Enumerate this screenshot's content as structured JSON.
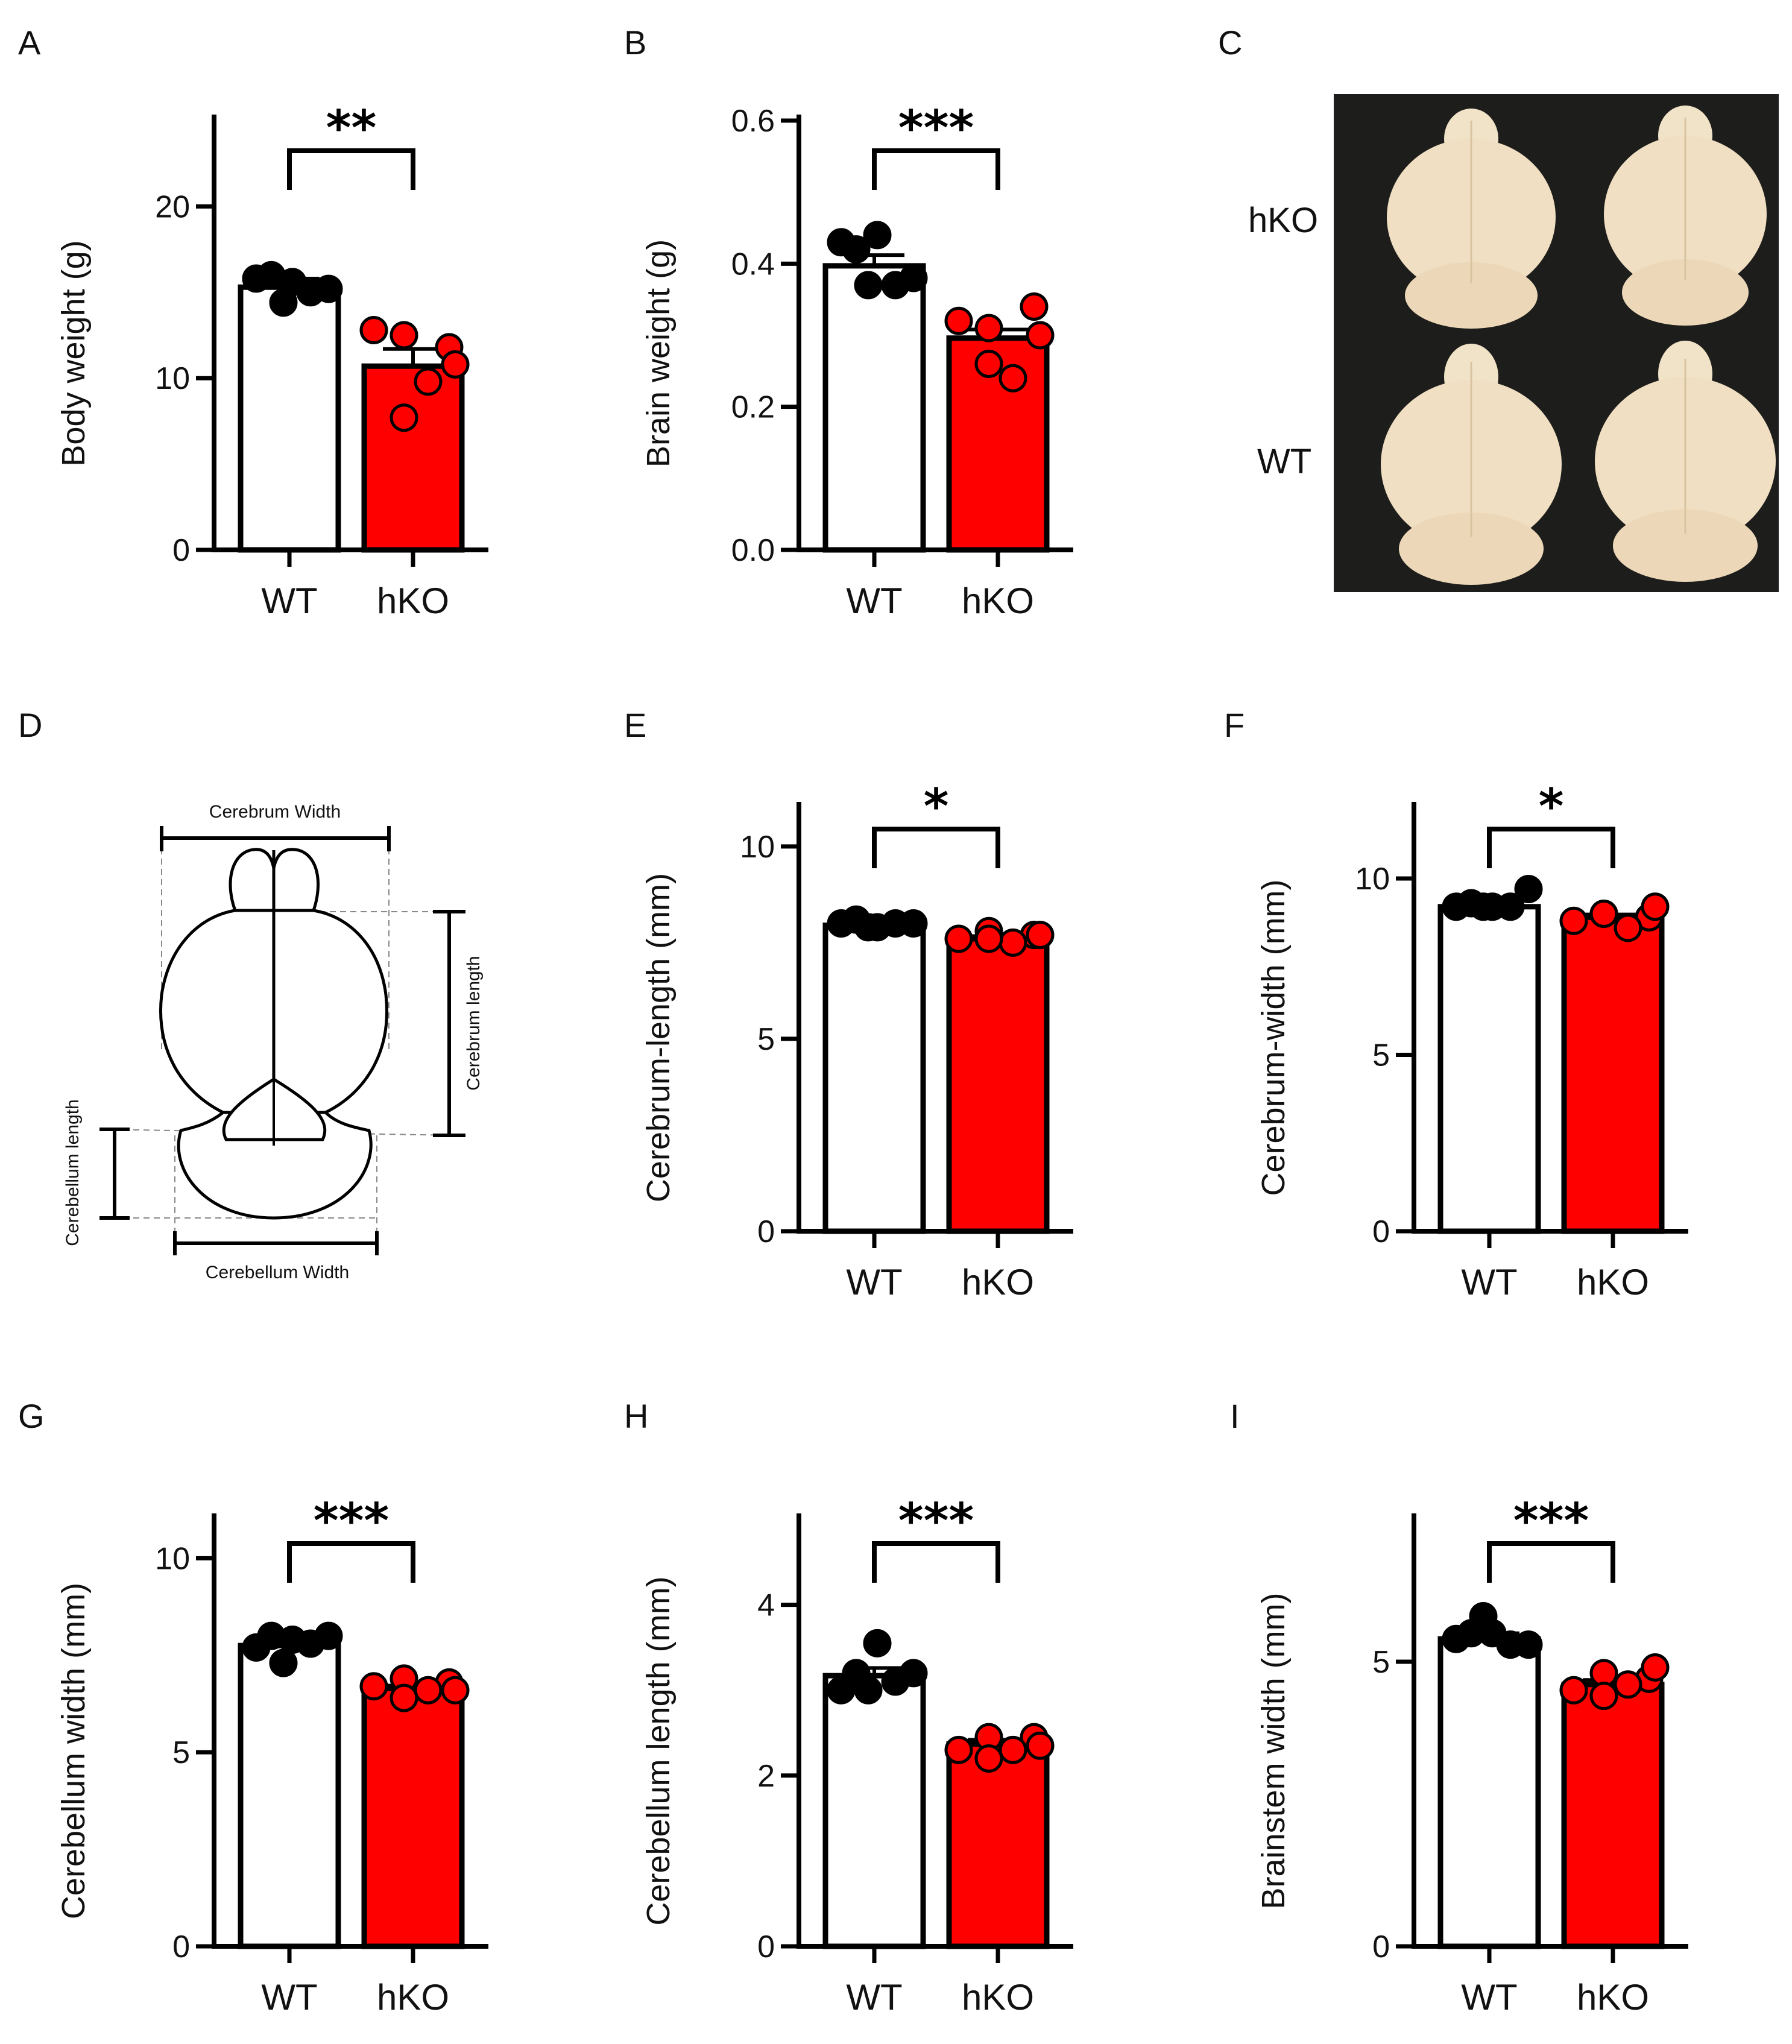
{
  "colors": {
    "wt_bar": "#ffffff",
    "ko_bar": "#ff0000",
    "wt_dot": "#000000",
    "ko_dot": "#ff0000",
    "axis": "#000000"
  },
  "panels": {
    "C": {
      "letter": "C",
      "row_top": "hKO",
      "row_bottom": "WT"
    },
    "D": {
      "letter": "D",
      "cerebrum_width": "Cerebrum Width",
      "cerebrum_length": "Cerebrum length",
      "cerebellum_length": "Cerebellum length",
      "cerebellum_width": "Cerebellum Width"
    }
  },
  "chart_data": [
    {
      "id": "A",
      "letter": "A",
      "type": "bar",
      "ylabel": "Body weight (g)",
      "categories": [
        "WT",
        "hKO"
      ],
      "values": [
        15.3,
        10.7
      ],
      "errors": [
        0.5,
        1.0
      ],
      "ylim": [
        0,
        25
      ],
      "yticks": [
        0,
        10,
        20
      ],
      "tick_labels": [
        "0",
        "10",
        "20"
      ],
      "points": [
        [
          15.8,
          16.0,
          15.6,
          15.0,
          14.4,
          15.2
        ],
        [
          12.8,
          12.5,
          11.8,
          9.8,
          7.7,
          10.8
        ]
      ],
      "significance": "**"
    },
    {
      "id": "B",
      "letter": "B",
      "type": "bar",
      "ylabel": "Brain weight (g)",
      "categories": [
        "WT",
        "hKO"
      ],
      "values": [
        0.397,
        0.296
      ],
      "errors": [
        0.015,
        0.012
      ],
      "ylim": [
        0,
        0.6
      ],
      "yticks": [
        0,
        0.2,
        0.4,
        0.6
      ],
      "tick_labels": [
        "0.0",
        "0.2",
        "0.4",
        "0.6"
      ],
      "points": [
        [
          0.43,
          0.42,
          0.44,
          0.37,
          0.37,
          0.38
        ],
        [
          0.32,
          0.31,
          0.34,
          0.24,
          0.26,
          0.3
        ]
      ],
      "significance": "***"
    },
    {
      "id": "E",
      "letter": "E",
      "type": "bar",
      "ylabel": "Cerebrum-length (mm)",
      "categories": [
        "WT",
        "hKO"
      ],
      "values": [
        7.95,
        7.6
      ],
      "errors": [
        0.08,
        0.07
      ],
      "ylim": [
        0,
        11
      ],
      "yticks": [
        0,
        5,
        10
      ],
      "tick_labels": [
        "0",
        "5",
        "10"
      ],
      "points": [
        [
          8.0,
          8.1,
          7.9,
          8.0,
          7.9,
          8.0
        ],
        [
          7.6,
          7.8,
          7.7,
          7.5,
          7.6,
          7.7
        ]
      ],
      "significance": "*"
    },
    {
      "id": "F",
      "letter": "F",
      "type": "bar",
      "ylabel": "Cerebrum-width (mm)",
      "categories": [
        "WT",
        "hKO"
      ],
      "values": [
        9.2,
        8.9
      ],
      "errors": [
        0.08,
        0.08
      ],
      "ylim": [
        0,
        12
      ],
      "yticks": [
        0,
        5,
        10
      ],
      "tick_labels": [
        "0",
        "5",
        "10"
      ],
      "points": [
        [
          9.2,
          9.3,
          9.2,
          9.2,
          9.2,
          9.7
        ],
        [
          8.8,
          9.0,
          8.9,
          8.6,
          9.0,
          9.2
        ]
      ],
      "significance": "*"
    },
    {
      "id": "G",
      "letter": "G",
      "type": "bar",
      "ylabel": "Cerebellum width (mm)",
      "categories": [
        "WT",
        "hKO"
      ],
      "values": [
        7.75,
        6.65
      ],
      "errors": [
        0.08,
        0.07
      ],
      "ylim": [
        0,
        11
      ],
      "yticks": [
        0,
        5,
        10
      ],
      "tick_labels": [
        "0",
        "5",
        "10"
      ],
      "points": [
        [
          7.7,
          8.0,
          7.9,
          7.8,
          7.3,
          8.0
        ],
        [
          6.7,
          6.9,
          6.8,
          6.6,
          6.4,
          6.6
        ]
      ],
      "significance": "***"
    },
    {
      "id": "H",
      "letter": "H",
      "type": "bar",
      "ylabel": "Cerebellum length (mm)",
      "categories": [
        "WT",
        "hKO"
      ],
      "values": [
        3.17,
        2.37
      ],
      "errors": [
        0.09,
        0.05
      ],
      "ylim": [
        0,
        5
      ],
      "yticks": [
        0,
        2,
        4
      ],
      "tick_labels": [
        "0",
        "2",
        "4"
      ],
      "points": [
        [
          3.0,
          3.2,
          3.55,
          3.1,
          3.0,
          3.2
        ],
        [
          2.3,
          2.45,
          2.45,
          2.3,
          2.2,
          2.35
        ]
      ],
      "significance": "***"
    },
    {
      "id": "I",
      "letter": "I",
      "type": "bar",
      "ylabel": "Brainstem width (mm)",
      "categories": [
        "WT",
        "hKO"
      ],
      "values": [
        5.4,
        4.6
      ],
      "errors": [
        0.1,
        0.08
      ],
      "ylim": [
        0,
        7.5
      ],
      "yticks": [
        0,
        5
      ],
      "tick_labels": [
        "0",
        "5"
      ],
      "points": [
        [
          5.4,
          5.5,
          5.5,
          5.3,
          5.8,
          5.3
        ],
        [
          4.5,
          4.8,
          4.7,
          4.6,
          4.4,
          4.9
        ]
      ],
      "significance": "***"
    }
  ]
}
